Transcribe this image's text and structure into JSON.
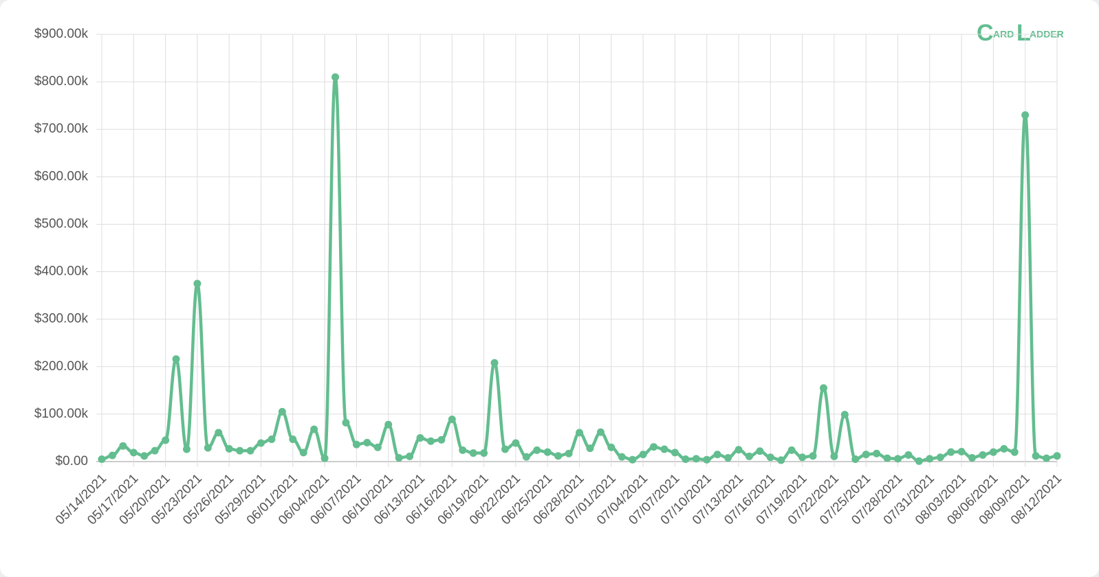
{
  "logo": {
    "first": "C",
    "first_rest": "ARD",
    "second": "L",
    "second_rest": "ADDER"
  },
  "chart_data": {
    "type": "line",
    "categories": [
      "05/14/2021",
      null,
      null,
      "05/17/2021",
      null,
      null,
      "05/20/2021",
      null,
      null,
      "05/23/2021",
      null,
      null,
      "05/26/2021",
      null,
      null,
      "05/29/2021",
      null,
      null,
      "06/01/2021",
      null,
      null,
      "06/04/2021",
      null,
      null,
      "06/07/2021",
      null,
      null,
      "06/10/2021",
      null,
      null,
      "06/13/2021",
      null,
      null,
      "06/16/2021",
      null,
      null,
      "06/19/2021",
      null,
      null,
      "06/22/2021",
      null,
      null,
      "06/25/2021",
      null,
      null,
      "06/28/2021",
      null,
      null,
      "07/01/2021",
      null,
      null,
      "07/04/2021",
      null,
      null,
      "07/07/2021",
      null,
      null,
      "07/10/2021",
      null,
      null,
      "07/13/2021",
      null,
      null,
      "07/16/2021",
      null,
      null,
      "07/19/2021",
      null,
      null,
      "07/22/2021",
      null,
      null,
      "07/25/2021",
      null,
      null,
      "07/28/2021",
      null,
      null,
      "07/31/2021",
      null,
      null,
      "08/03/2021",
      null,
      null,
      "08/06/2021",
      null,
      null,
      "08/09/2021",
      null,
      null,
      "08/12/2021"
    ],
    "values": [
      5000,
      13000,
      33000,
      19000,
      12000,
      23000,
      45000,
      216000,
      26000,
      375000,
      29000,
      61000,
      27000,
      23000,
      23000,
      39000,
      47000,
      105000,
      47000,
      19000,
      68000,
      7000,
      810000,
      82000,
      36000,
      40000,
      30000,
      78000,
      8000,
      11000,
      50000,
      43000,
      46000,
      89000,
      24000,
      18000,
      18000,
      208000,
      26000,
      39000,
      10000,
      24000,
      20000,
      12000,
      17000,
      61000,
      28000,
      62000,
      30000,
      10000,
      4000,
      15000,
      31000,
      26000,
      19000,
      5000,
      6000,
      4000,
      15000,
      8000,
      25000,
      11000,
      22000,
      9000,
      3000,
      24000,
      9000,
      12000,
      155000,
      11000,
      99000,
      5000,
      15000,
      17000,
      7000,
      6000,
      14000,
      1000,
      6000,
      9000,
      20000,
      21000,
      8000,
      14000,
      20000,
      27000,
      20000,
      730000,
      12000,
      7000,
      12000
    ],
    "color": "#63bd8f",
    "ylim": [
      0,
      900000
    ],
    "yticks": [
      {
        "value": 0,
        "label": "$0.00"
      },
      {
        "value": 100000,
        "label": "$100.00k"
      },
      {
        "value": 200000,
        "label": "$200.00k"
      },
      {
        "value": 300000,
        "label": "$300.00k"
      },
      {
        "value": 400000,
        "label": "$400.00k"
      },
      {
        "value": 500000,
        "label": "$500.00k"
      },
      {
        "value": 600000,
        "label": "$600.00k"
      },
      {
        "value": 700000,
        "label": "$700.00k"
      },
      {
        "value": 800000,
        "label": "$800.00k"
      },
      {
        "value": 900000,
        "label": "$900.00k"
      }
    ],
    "grid": true
  }
}
